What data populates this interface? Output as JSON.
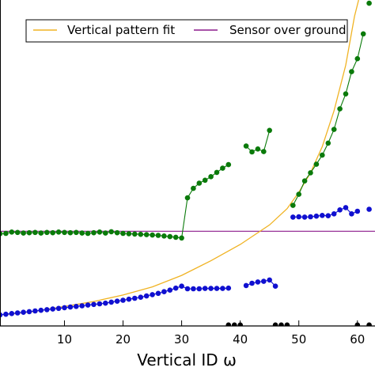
{
  "chart_data": {
    "type": "line",
    "xlabel": "Vertical ID ω",
    "xlim": [
      -1,
      63
    ],
    "ylim": [
      0,
      1
    ],
    "x_ticks": [
      10,
      20,
      30,
      40,
      50,
      60
    ],
    "legend": {
      "placement": "top",
      "entries": [
        "Vertical pattern fit",
        "Sensor over ground"
      ]
    },
    "colors": {
      "fit": "#f0b323",
      "sensor": "#8b1a8b",
      "green": "#0a7a0a",
      "blue": "#1010d0",
      "black": "#000000"
    },
    "series": [
      {
        "name": "Vertical pattern fit",
        "kind": "curve",
        "color": "fit",
        "points": [
          [
            0,
            0.035
          ],
          [
            5,
            0.045
          ],
          [
            10,
            0.06
          ],
          [
            15,
            0.075
          ],
          [
            20,
            0.095
          ],
          [
            25,
            0.12
          ],
          [
            30,
            0.155
          ],
          [
            35,
            0.2
          ],
          [
            40,
            0.25
          ],
          [
            45,
            0.31
          ],
          [
            48,
            0.36
          ],
          [
            50,
            0.41
          ],
          [
            52,
            0.47
          ],
          [
            54,
            0.55
          ],
          [
            56,
            0.66
          ],
          [
            58,
            0.8
          ],
          [
            59.5,
            0.95
          ],
          [
            60.2,
            1.0
          ]
        ]
      },
      {
        "name": "Sensor over ground",
        "kind": "hline",
        "color": "sensor",
        "y": 0.2905
      },
      {
        "kind": "scatter-line",
        "color": "green",
        "segments": [
          [
            [
              -1,
              0.283
            ],
            [
              0,
              0.284
            ],
            [
              1,
              0.288
            ],
            [
              2,
              0.287
            ],
            [
              3,
              0.285
            ],
            [
              4,
              0.286
            ],
            [
              5,
              0.287
            ],
            [
              6,
              0.285
            ],
            [
              7,
              0.287
            ],
            [
              8,
              0.286
            ],
            [
              9,
              0.288
            ],
            [
              10,
              0.287
            ],
            [
              11,
              0.286
            ],
            [
              12,
              0.287
            ],
            [
              13,
              0.285
            ],
            [
              14,
              0.284
            ],
            [
              15,
              0.286
            ],
            [
              16,
              0.288
            ],
            [
              17,
              0.285
            ],
            [
              18,
              0.289
            ],
            [
              19,
              0.286
            ],
            [
              20,
              0.284
            ],
            [
              21,
              0.283
            ],
            [
              22,
              0.282
            ],
            [
              23,
              0.281
            ],
            [
              24,
              0.28
            ],
            [
              25,
              0.279
            ],
            [
              26,
              0.278
            ],
            [
              27,
              0.276
            ],
            [
              28,
              0.274
            ],
            [
              29,
              0.272
            ],
            [
              30,
              0.27
            ],
            [
              31,
              0.393
            ],
            [
              32,
              0.422
            ],
            [
              33,
              0.438
            ],
            [
              34,
              0.447
            ],
            [
              35,
              0.458
            ],
            [
              36,
              0.471
            ],
            [
              37,
              0.484
            ],
            [
              38,
              0.495
            ]
          ],
          [
            [
              41,
              0.552
            ],
            [
              42,
              0.534
            ],
            [
              43,
              0.543
            ],
            [
              44,
              0.535
            ],
            [
              45,
              0.6
            ]
          ],
          [
            [
              49,
              0.37
            ],
            [
              50,
              0.404
            ],
            [
              51,
              0.445
            ],
            [
              52,
              0.47
            ],
            [
              53,
              0.496
            ],
            [
              54,
              0.524
            ],
            [
              55,
              0.561
            ],
            [
              56,
              0.603
            ],
            [
              57,
              0.666
            ],
            [
              58,
              0.712
            ],
            [
              59,
              0.78
            ],
            [
              60,
              0.82
            ],
            [
              61,
              0.896
            ]
          ],
          [
            [
              62,
              0.99
            ]
          ]
        ]
      },
      {
        "kind": "scatter-line",
        "color": "blue",
        "segments": [
          [
            [
              -1,
              0.034
            ],
            [
              0,
              0.036
            ],
            [
              1,
              0.038
            ],
            [
              2,
              0.04
            ],
            [
              3,
              0.042
            ],
            [
              4,
              0.044
            ],
            [
              5,
              0.046
            ],
            [
              6,
              0.048
            ],
            [
              7,
              0.05
            ],
            [
              8,
              0.052
            ],
            [
              9,
              0.054
            ],
            [
              10,
              0.056
            ],
            [
              11,
              0.058
            ],
            [
              12,
              0.06
            ],
            [
              13,
              0.062
            ],
            [
              14,
              0.064
            ],
            [
              15,
              0.066
            ],
            [
              16,
              0.068
            ],
            [
              17,
              0.07
            ],
            [
              18,
              0.073
            ],
            [
              19,
              0.076
            ],
            [
              20,
              0.079
            ],
            [
              21,
              0.082
            ],
            [
              22,
              0.085
            ],
            [
              23,
              0.088
            ],
            [
              24,
              0.092
            ],
            [
              25,
              0.096
            ],
            [
              26,
              0.1
            ],
            [
              27,
              0.105
            ],
            [
              28,
              0.11
            ],
            [
              29,
              0.116
            ],
            [
              30,
              0.122
            ],
            [
              31,
              0.114
            ],
            [
              32,
              0.114
            ],
            [
              33,
              0.114
            ],
            [
              34,
              0.115
            ],
            [
              35,
              0.115
            ],
            [
              36,
              0.115
            ],
            [
              37,
              0.115
            ],
            [
              38,
              0.116
            ]
          ],
          [
            [
              41,
              0.124
            ],
            [
              42,
              0.131
            ],
            [
              43,
              0.135
            ],
            [
              44,
              0.137
            ],
            [
              45,
              0.141
            ],
            [
              46,
              0.122
            ]
          ],
          [
            [
              49,
              0.334
            ],
            [
              50,
              0.335
            ],
            [
              51,
              0.334
            ],
            [
              52,
              0.335
            ],
            [
              53,
              0.337
            ],
            [
              54,
              0.339
            ],
            [
              55,
              0.338
            ],
            [
              56,
              0.344
            ],
            [
              57,
              0.356
            ],
            [
              58,
              0.363
            ],
            [
              59,
              0.344
            ],
            [
              60,
              0.352
            ]
          ],
          [
            [
              62,
              0.358
            ]
          ]
        ]
      },
      {
        "kind": "scatter",
        "color": "black",
        "points": [
          [
            38,
            0.003
          ],
          [
            39,
            0.003
          ],
          [
            40,
            0.003
          ],
          [
            46,
            0.003
          ],
          [
            47,
            0.003
          ],
          [
            48,
            0.003
          ],
          [
            60,
            0.003
          ],
          [
            62,
            0.003
          ]
        ]
      }
    ]
  }
}
